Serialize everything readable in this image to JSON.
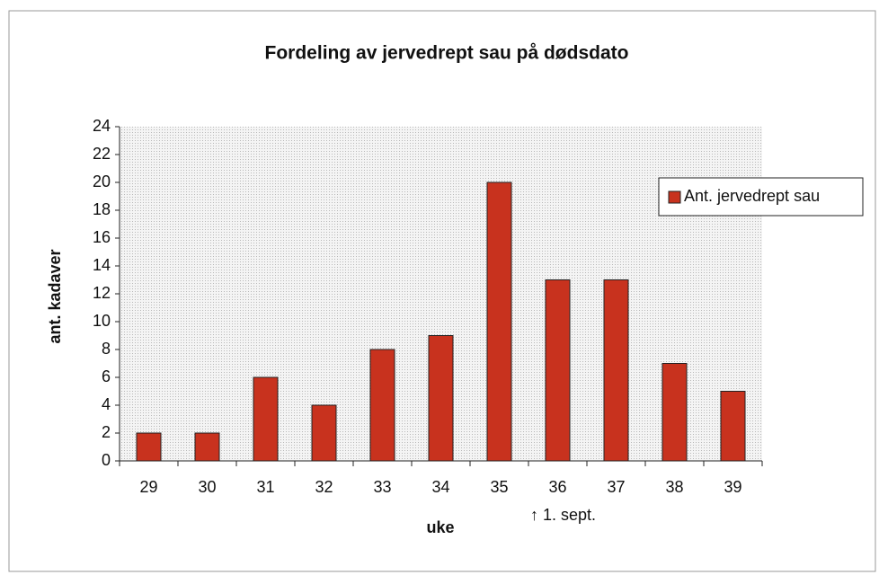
{
  "chart_data": {
    "type": "bar",
    "title": "Fordeling av jervedrept sau på dødsdato",
    "categories": [
      "29",
      "30",
      "31",
      "32",
      "33",
      "34",
      "35",
      "36",
      "37",
      "38",
      "39"
    ],
    "series": [
      {
        "name": "Ant. jervedrept sau",
        "color": "#c8321e",
        "values": [
          2,
          2,
          6,
          4,
          8,
          9,
          20,
          13,
          13,
          7,
          5
        ]
      }
    ],
    "ylim": [
      0,
      24
    ],
    "yticks": [
      0,
      2,
      4,
      6,
      8,
      10,
      12,
      14,
      16,
      18,
      20,
      22,
      24
    ],
    "xlabel": "uke",
    "ylabel": "ant. kadaver",
    "annotation": "↑ 1. sept.",
    "legend": "right"
  }
}
